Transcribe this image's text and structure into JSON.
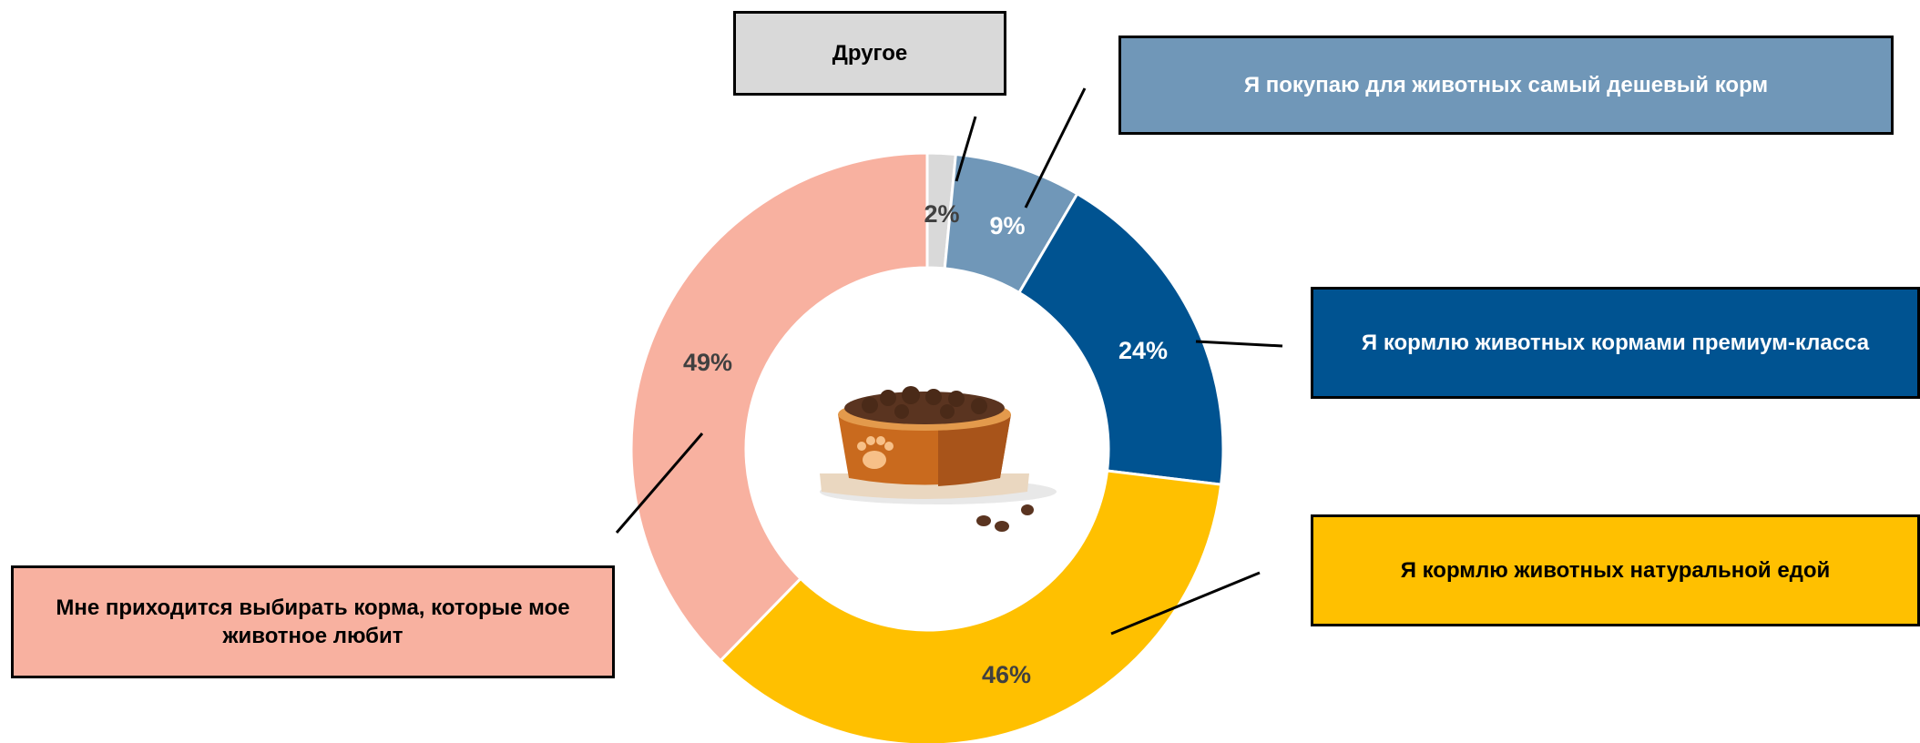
{
  "chart_data": {
    "type": "donut",
    "categories": [
      "Другое",
      "Я покупаю для животных самый дешевый корм",
      "Я кормлю животных кормами премиум-класса",
      "Я кормлю животных натуральной едой",
      "Мне приходится выбирать корма, которые мое животное любит"
    ],
    "values": [
      2,
      9,
      24,
      46,
      49
    ],
    "value_labels": [
      "2%",
      "9%",
      "24%",
      "46%",
      "49%"
    ],
    "colors": [
      "#d9d9d9",
      "#7097b8",
      "#005391",
      "#ffc000",
      "#f8b1a0"
    ]
  }
}
